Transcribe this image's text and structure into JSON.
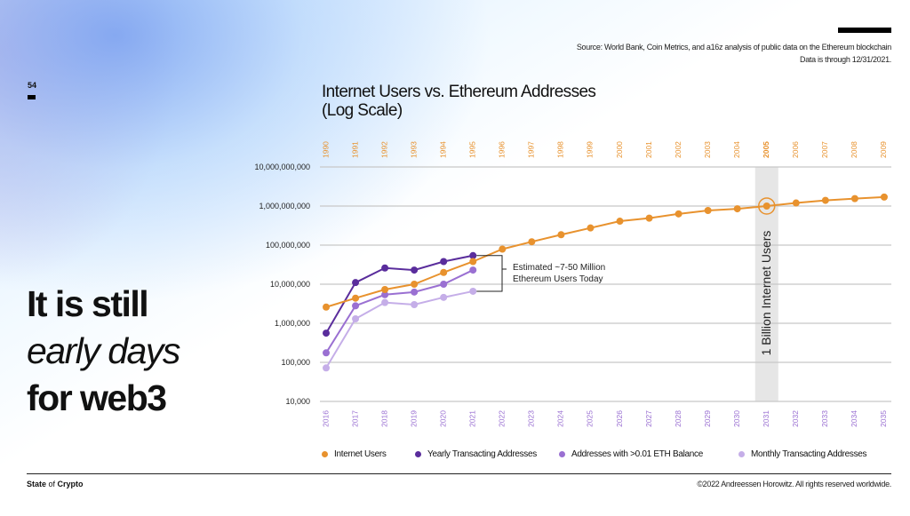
{
  "slide": {
    "page_number": "54",
    "source_line1": "Source: World Bank, Coin Metrics, and a16z analysis of public data on the Ethereum blockchain",
    "source_line2": "Data is through 12/31/2021.",
    "headline_line1": "It is still",
    "headline_line2": "early days",
    "headline_line3": "for web3",
    "brand_state": "State",
    "brand_of": " of ",
    "brand_crypto": "Crypto",
    "copyright": "©2022 Andreessen Horowitz. All rights reserved worldwide."
  },
  "chart_data": {
    "type": "line",
    "title_line1": "Internet Users vs. Ethereum Addresses",
    "title_line2": "(Log Scale)",
    "y_scale": "log",
    "ylim": [
      10000,
      10000000000
    ],
    "y_ticks": [
      "10,000,000,000",
      "1,000,000,000",
      "100,000,000",
      "10,000,000",
      "1,000,000",
      "100,000",
      "10,000"
    ],
    "y_tick_values": [
      10000000000,
      1000000000,
      100000000,
      10000000,
      1000000,
      100000,
      10000
    ],
    "grid": true,
    "x_top": [
      "1990",
      "1991",
      "1992",
      "1993",
      "1994",
      "1995",
      "1996",
      "1997",
      "1998",
      "1999",
      "2000",
      "2001",
      "2002",
      "2003",
      "2004",
      "2005",
      "2006",
      "2007",
      "2008",
      "2009"
    ],
    "x_bottom": [
      "2016",
      "2017",
      "2018",
      "2019",
      "2020",
      "2021",
      "2022",
      "2023",
      "2024",
      "2025",
      "2026",
      "2027",
      "2028",
      "2029",
      "2030",
      "2031",
      "2032",
      "2033",
      "2034",
      "2035"
    ],
    "series": [
      {
        "name": "Internet Users",
        "color": "#E8922E",
        "axis": "top",
        "values": [
          2600000,
          4400000,
          7300000,
          10000000,
          20000000,
          38000000,
          79000000,
          122000000,
          185000000,
          275000000,
          410000000,
          490000000,
          630000000,
          770000000,
          850000000,
          1000000000,
          1200000000,
          1400000000,
          1550000000,
          1700000000
        ]
      },
      {
        "name": "Yearly Transacting Addresses",
        "color": "#5A2D9C",
        "axis": "bottom",
        "values": [
          560000,
          11000000,
          26000000,
          23000000,
          38000000,
          54000000
        ]
      },
      {
        "name": "Addresses with >0.01 ETH Balance",
        "color": "#9A70D2",
        "axis": "bottom",
        "values": [
          175000,
          2800000,
          5400000,
          6300000,
          10000000,
          23000000
        ]
      },
      {
        "name": "Monthly Transacting Addresses",
        "color": "#C5AEE8",
        "axis": "bottom",
        "values": [
          72000,
          1300000,
          3400000,
          3000000,
          4600000,
          6600000
        ]
      }
    ],
    "highlight": {
      "top_year": "2005",
      "bottom_year": "2031",
      "label": "1 Billion Internet Users"
    },
    "annotation": {
      "line1": "Estimated ~7-50 Million",
      "line2": "Ethereum Users Today"
    },
    "legend_position": "bottom"
  }
}
